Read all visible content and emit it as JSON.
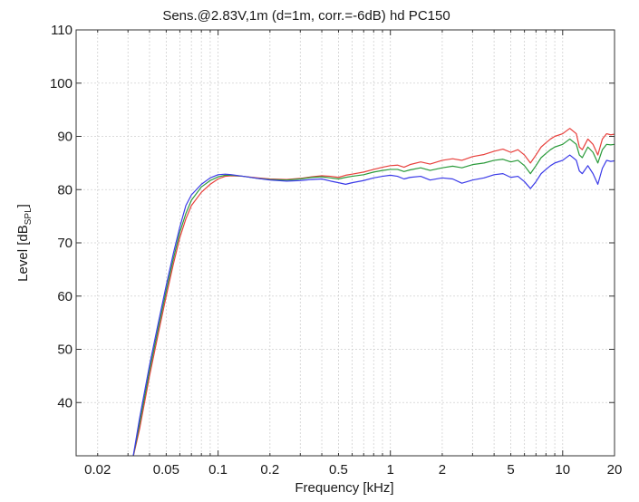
{
  "chart_data": {
    "type": "line",
    "title": "Sens.@2.83V,1m  (d=1m, corr.=-6dB)   hd PC150",
    "xlabel": "Frequency [kHz]",
    "ylabel_main": "Level [dB",
    "ylabel_sub": "SPL",
    "ylabel_close": "]",
    "x_scale": "log",
    "xlim": [
      0.015,
      20
    ],
    "ylim": [
      30,
      110
    ],
    "grid": true,
    "x_ticks": [
      {
        "value": 0.02,
        "label": "0.02"
      },
      {
        "value": 0.05,
        "label": "0.05"
      },
      {
        "value": 0.1,
        "label": "0.1"
      },
      {
        "value": 0.2,
        "label": "0.2"
      },
      {
        "value": 0.5,
        "label": "0.5"
      },
      {
        "value": 1,
        "label": "1"
      },
      {
        "value": 2,
        "label": "2"
      },
      {
        "value": 5,
        "label": "5"
      },
      {
        "value": 10,
        "label": "10"
      },
      {
        "value": 20,
        "label": "20"
      }
    ],
    "y_ticks": [
      {
        "value": 40,
        "label": "40"
      },
      {
        "value": 50,
        "label": "50"
      },
      {
        "value": 60,
        "label": "60"
      },
      {
        "value": 70,
        "label": "70"
      },
      {
        "value": 80,
        "label": "80"
      },
      {
        "value": 90,
        "label": "90"
      },
      {
        "value": 100,
        "label": "100"
      },
      {
        "value": 110,
        "label": "110"
      }
    ],
    "series": [
      {
        "color": "#e8403c",
        "points": [
          [
            0.032,
            29.5
          ],
          [
            0.035,
            35
          ],
          [
            0.04,
            45
          ],
          [
            0.045,
            53
          ],
          [
            0.05,
            60
          ],
          [
            0.055,
            66
          ],
          [
            0.06,
            71
          ],
          [
            0.065,
            74.5
          ],
          [
            0.07,
            77
          ],
          [
            0.08,
            79.5
          ],
          [
            0.09,
            81
          ],
          [
            0.1,
            82
          ],
          [
            0.11,
            82.5
          ],
          [
            0.12,
            82.6
          ],
          [
            0.14,
            82.5
          ],
          [
            0.17,
            82.2
          ],
          [
            0.2,
            82.0
          ],
          [
            0.25,
            81.9
          ],
          [
            0.3,
            82.1
          ],
          [
            0.35,
            82.4
          ],
          [
            0.4,
            82.6
          ],
          [
            0.45,
            82.5
          ],
          [
            0.5,
            82.3
          ],
          [
            0.55,
            82.7
          ],
          [
            0.6,
            82.9
          ],
          [
            0.7,
            83.3
          ],
          [
            0.8,
            83.8
          ],
          [
            0.9,
            84.2
          ],
          [
            1.0,
            84.5
          ],
          [
            1.1,
            84.6
          ],
          [
            1.2,
            84.2
          ],
          [
            1.3,
            84.7
          ],
          [
            1.5,
            85.2
          ],
          [
            1.7,
            84.8
          ],
          [
            2.0,
            85.5
          ],
          [
            2.3,
            85.8
          ],
          [
            2.6,
            85.5
          ],
          [
            3.0,
            86.2
          ],
          [
            3.5,
            86.6
          ],
          [
            4.0,
            87.2
          ],
          [
            4.5,
            87.6
          ],
          [
            5.0,
            87.0
          ],
          [
            5.5,
            87.5
          ],
          [
            6.0,
            86.5
          ],
          [
            6.5,
            85.0
          ],
          [
            7.0,
            86.5
          ],
          [
            7.5,
            88.0
          ],
          [
            8.0,
            88.8
          ],
          [
            8.5,
            89.5
          ],
          [
            9.0,
            90.0
          ],
          [
            10.0,
            90.5
          ],
          [
            11.0,
            91.5
          ],
          [
            12.0,
            90.5
          ],
          [
            12.5,
            88.0
          ],
          [
            13.0,
            87.5
          ],
          [
            14.0,
            89.5
          ],
          [
            15.0,
            88.5
          ],
          [
            16.0,
            86.5
          ],
          [
            17.0,
            89.5
          ],
          [
            18.0,
            90.5
          ],
          [
            19.0,
            90.3
          ],
          [
            20.0,
            90.4
          ]
        ]
      },
      {
        "color": "#2a9a3a",
        "points": [
          [
            0.032,
            29.5
          ],
          [
            0.035,
            36
          ],
          [
            0.04,
            46
          ],
          [
            0.045,
            54
          ],
          [
            0.05,
            61
          ],
          [
            0.055,
            67
          ],
          [
            0.06,
            72
          ],
          [
            0.065,
            75.5
          ],
          [
            0.07,
            78
          ],
          [
            0.08,
            80.5
          ],
          [
            0.09,
            81.7
          ],
          [
            0.1,
            82.4
          ],
          [
            0.11,
            82.7
          ],
          [
            0.12,
            82.7
          ],
          [
            0.14,
            82.5
          ],
          [
            0.17,
            82.1
          ],
          [
            0.2,
            81.9
          ],
          [
            0.25,
            81.8
          ],
          [
            0.3,
            82.0
          ],
          [
            0.35,
            82.3
          ],
          [
            0.4,
            82.4
          ],
          [
            0.45,
            82.2
          ],
          [
            0.5,
            82.0
          ],
          [
            0.55,
            82.3
          ],
          [
            0.6,
            82.5
          ],
          [
            0.7,
            82.8
          ],
          [
            0.8,
            83.3
          ],
          [
            0.9,
            83.6
          ],
          [
            1.0,
            83.8
          ],
          [
            1.1,
            83.8
          ],
          [
            1.2,
            83.4
          ],
          [
            1.3,
            83.7
          ],
          [
            1.5,
            84.1
          ],
          [
            1.7,
            83.6
          ],
          [
            2.0,
            84.1
          ],
          [
            2.3,
            84.4
          ],
          [
            2.6,
            84.1
          ],
          [
            3.0,
            84.7
          ],
          [
            3.5,
            85.0
          ],
          [
            4.0,
            85.5
          ],
          [
            4.5,
            85.7
          ],
          [
            5.0,
            85.2
          ],
          [
            5.5,
            85.5
          ],
          [
            6.0,
            84.5
          ],
          [
            6.5,
            83.0
          ],
          [
            7.0,
            84.5
          ],
          [
            7.5,
            86.0
          ],
          [
            8.0,
            86.8
          ],
          [
            8.5,
            87.5
          ],
          [
            9.0,
            88.0
          ],
          [
            10.0,
            88.5
          ],
          [
            11.0,
            89.5
          ],
          [
            12.0,
            88.5
          ],
          [
            12.5,
            86.5
          ],
          [
            13.0,
            86.0
          ],
          [
            14.0,
            88.0
          ],
          [
            15.0,
            87.0
          ],
          [
            16.0,
            85.0
          ],
          [
            17.0,
            87.5
          ],
          [
            18.0,
            88.5
          ],
          [
            19.0,
            88.4
          ],
          [
            20.0,
            88.5
          ]
        ]
      },
      {
        "color": "#3a3ae8",
        "points": [
          [
            0.032,
            29.5
          ],
          [
            0.035,
            37
          ],
          [
            0.04,
            47
          ],
          [
            0.045,
            55
          ],
          [
            0.05,
            62
          ],
          [
            0.055,
            68
          ],
          [
            0.06,
            73
          ],
          [
            0.065,
            77
          ],
          [
            0.07,
            79
          ],
          [
            0.08,
            81
          ],
          [
            0.09,
            82.2
          ],
          [
            0.1,
            82.8
          ],
          [
            0.11,
            82.9
          ],
          [
            0.12,
            82.8
          ],
          [
            0.14,
            82.5
          ],
          [
            0.17,
            82.1
          ],
          [
            0.2,
            81.8
          ],
          [
            0.25,
            81.6
          ],
          [
            0.3,
            81.7
          ],
          [
            0.35,
            81.9
          ],
          [
            0.4,
            82.0
          ],
          [
            0.45,
            81.6
          ],
          [
            0.5,
            81.3
          ],
          [
            0.55,
            81.0
          ],
          [
            0.6,
            81.3
          ],
          [
            0.7,
            81.7
          ],
          [
            0.8,
            82.2
          ],
          [
            0.9,
            82.5
          ],
          [
            1.0,
            82.7
          ],
          [
            1.1,
            82.5
          ],
          [
            1.2,
            82.0
          ],
          [
            1.3,
            82.3
          ],
          [
            1.5,
            82.5
          ],
          [
            1.7,
            81.8
          ],
          [
            2.0,
            82.2
          ],
          [
            2.3,
            82.0
          ],
          [
            2.6,
            81.2
          ],
          [
            3.0,
            81.8
          ],
          [
            3.5,
            82.2
          ],
          [
            4.0,
            82.8
          ],
          [
            4.5,
            83.0
          ],
          [
            5.0,
            82.3
          ],
          [
            5.5,
            82.5
          ],
          [
            6.0,
            81.5
          ],
          [
            6.5,
            80.2
          ],
          [
            7.0,
            81.5
          ],
          [
            7.5,
            83.0
          ],
          [
            8.0,
            83.8
          ],
          [
            8.5,
            84.5
          ],
          [
            9.0,
            85.0
          ],
          [
            10.0,
            85.5
          ],
          [
            11.0,
            86.5
          ],
          [
            12.0,
            85.5
          ],
          [
            12.5,
            83.5
          ],
          [
            13.0,
            83.0
          ],
          [
            14.0,
            84.5
          ],
          [
            15.0,
            83.0
          ],
          [
            16.0,
            81.0
          ],
          [
            17.0,
            84.0
          ],
          [
            18.0,
            85.5
          ],
          [
            19.0,
            85.3
          ],
          [
            20.0,
            85.4
          ]
        ]
      }
    ]
  }
}
